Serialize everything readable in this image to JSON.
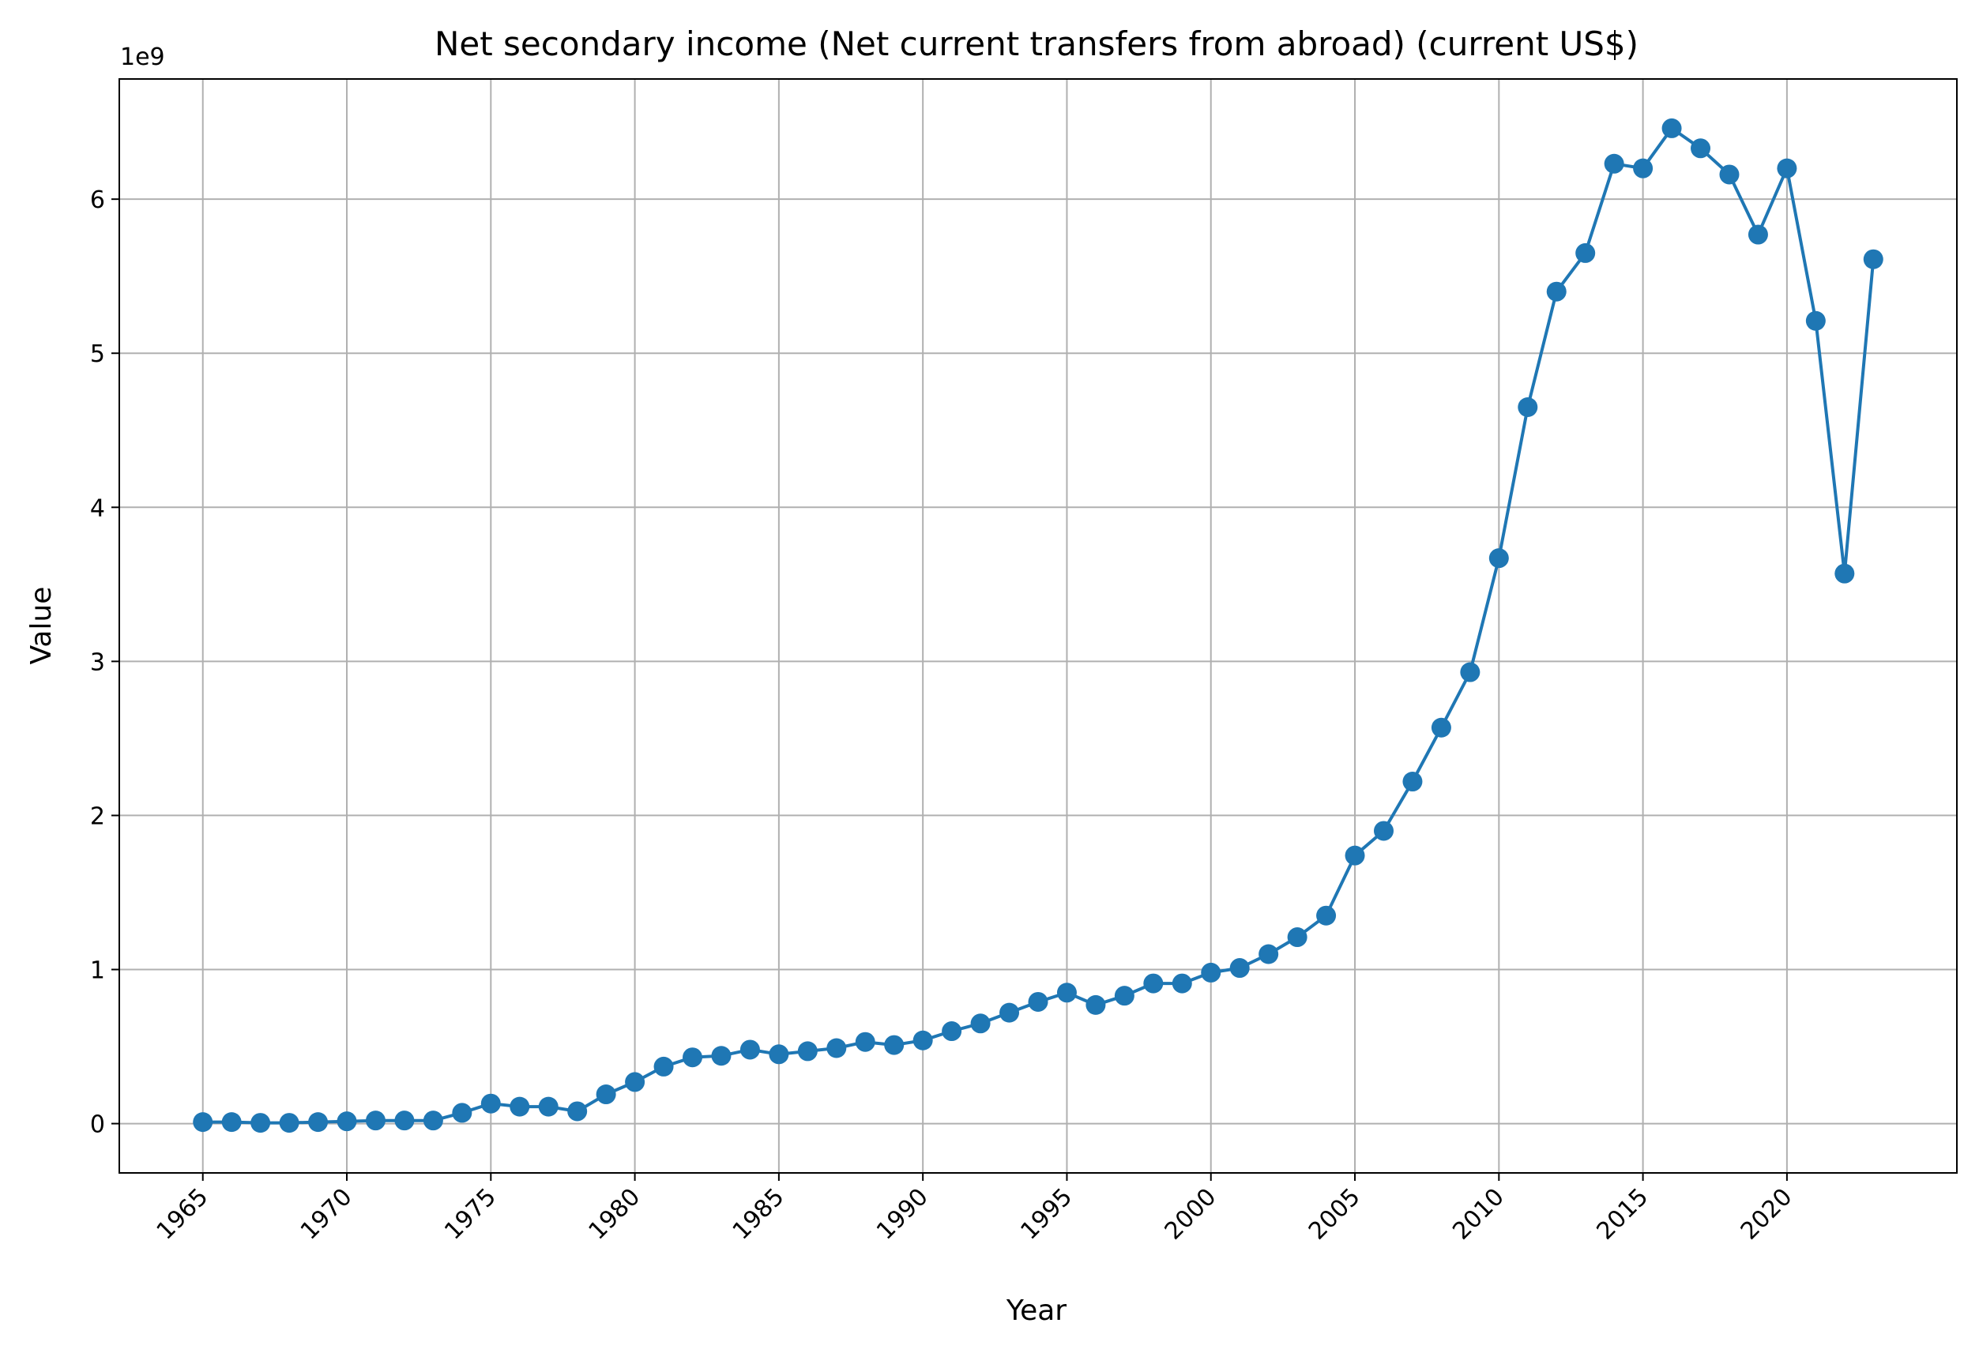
{
  "chart_data": {
    "type": "line",
    "title": "Net secondary income (Net current transfers from abroad) (current US$)",
    "xlabel": "Year",
    "ylabel": "Value",
    "offset_label": "1e9",
    "grid": true,
    "markers": true,
    "color": "#1f77b4",
    "xlim": [
      1962.1,
      2025.9
    ],
    "ylim": [
      -0.32,
      6.78
    ],
    "xticks": [
      1965,
      1970,
      1975,
      1980,
      1985,
      1990,
      1995,
      2000,
      2005,
      2010,
      2015,
      2020
    ],
    "xtick_labels": [
      "1965",
      "1970",
      "1975",
      "1980",
      "1985",
      "1990",
      "1995",
      "2000",
      "2005",
      "2010",
      "2015",
      "2020"
    ],
    "yticks": [
      0,
      1,
      2,
      3,
      4,
      5,
      6
    ],
    "ytick_labels": [
      "0",
      "1",
      "2",
      "3",
      "4",
      "5",
      "6"
    ],
    "x": [
      1965,
      1966,
      1967,
      1968,
      1969,
      1970,
      1971,
      1972,
      1973,
      1974,
      1975,
      1976,
      1977,
      1978,
      1979,
      1980,
      1981,
      1982,
      1983,
      1984,
      1985,
      1986,
      1987,
      1988,
      1989,
      1990,
      1991,
      1992,
      1993,
      1994,
      1995,
      1996,
      1997,
      1998,
      1999,
      2000,
      2001,
      2002,
      2003,
      2004,
      2005,
      2006,
      2007,
      2008,
      2009,
      2010,
      2011,
      2012,
      2013,
      2014,
      2015,
      2016,
      2017,
      2018,
      2019,
      2020,
      2021,
      2022,
      2023
    ],
    "series": [
      {
        "values": [
          0.01,
          0.01,
          0.005,
          0.005,
          0.01,
          0.015,
          0.02,
          0.02,
          0.02,
          0.07,
          0.13,
          0.11,
          0.11,
          0.08,
          0.19,
          0.27,
          0.37,
          0.43,
          0.44,
          0.48,
          0.45,
          0.47,
          0.49,
          0.53,
          0.51,
          0.54,
          0.6,
          0.65,
          0.72,
          0.79,
          0.85,
          0.77,
          0.83,
          0.91,
          0.91,
          0.98,
          1.01,
          1.1,
          1.21,
          1.35,
          1.74,
          1.9,
          2.22,
          2.57,
          2.93,
          3.67,
          4.65,
          5.4,
          5.65,
          6.23,
          6.2,
          6.46,
          6.33,
          6.16,
          5.77,
          6.2,
          5.21,
          3.57,
          5.61
        ]
      }
    ]
  }
}
